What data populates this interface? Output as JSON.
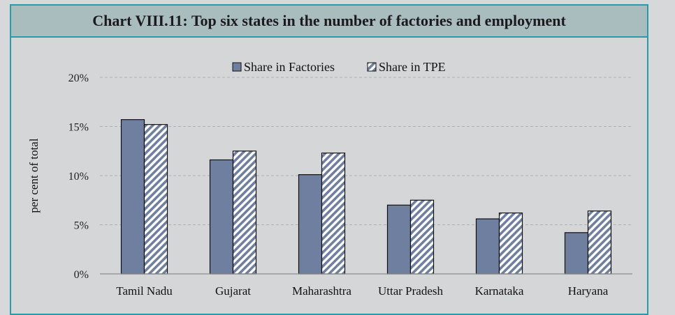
{
  "chart_data": {
    "type": "bar",
    "title": "Chart VIII.11: Top six states in the number of factories and employment",
    "ylabel": "per cent of total",
    "xlabel": "",
    "categories": [
      "Tamil Nadu",
      "Gujarat",
      "Maharashtra",
      "Uttar Pradesh",
      "Karnataka",
      "Haryana"
    ],
    "series": [
      {
        "name": "Share in Factories",
        "values": [
          15.7,
          11.6,
          10.1,
          7.0,
          5.6,
          4.2
        ],
        "color": "#6f7f9f",
        "pattern": "solid"
      },
      {
        "name": "Share in TPE",
        "values": [
          15.2,
          12.5,
          12.3,
          7.5,
          6.2,
          6.4
        ],
        "color": "#6f7f9f",
        "pattern": "diagonal-hatch"
      }
    ],
    "ylim": [
      0,
      20
    ],
    "yticks": [
      "0%",
      "5%",
      "10%",
      "15%",
      "20%"
    ],
    "grid": true,
    "legend": "top-center"
  }
}
